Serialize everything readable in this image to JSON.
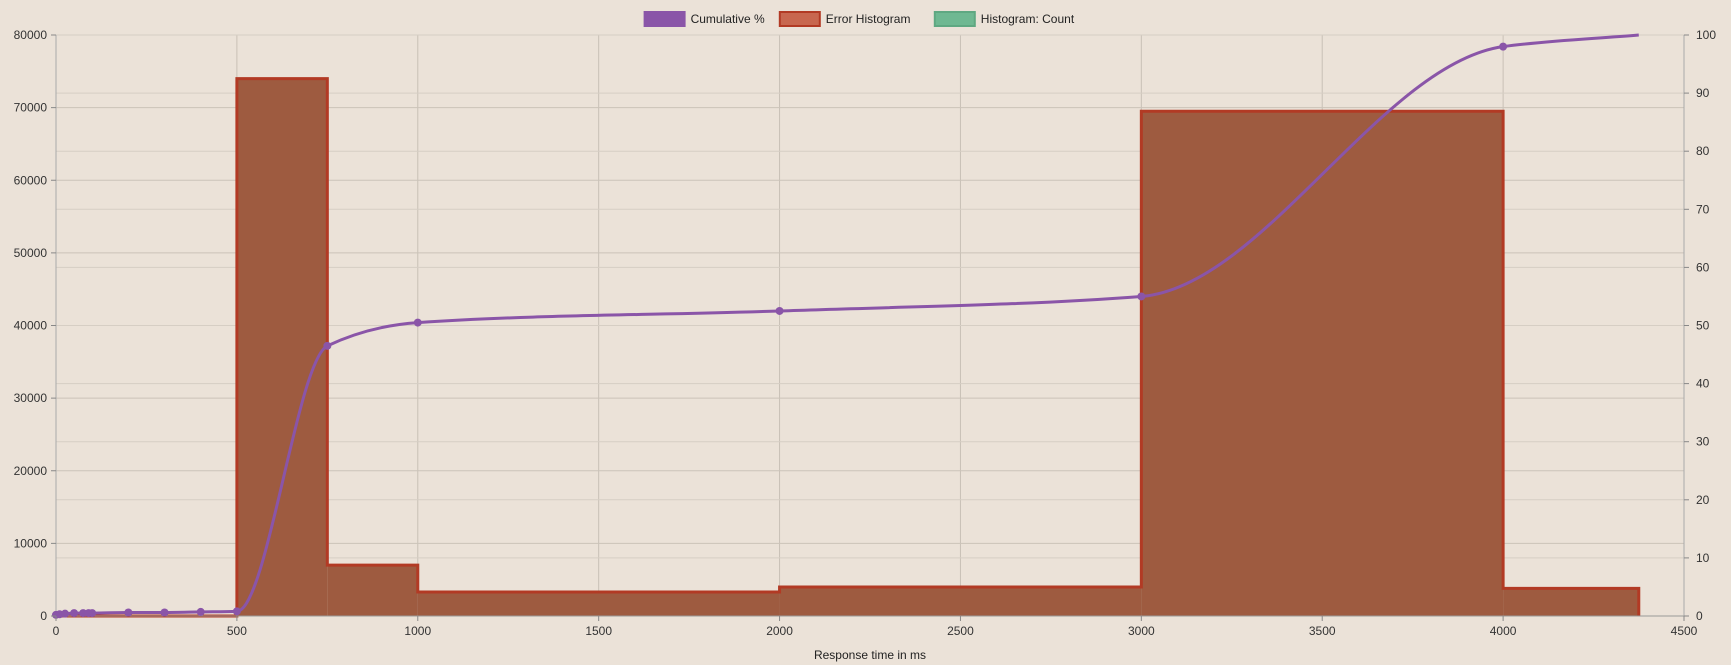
{
  "chart_data": {
    "type": "bar",
    "xlabel": "Response time in ms",
    "ylabel": "",
    "y2label": "",
    "xlim": [
      0,
      4500
    ],
    "ylim": [
      0,
      80000
    ],
    "y2lim": [
      0,
      100
    ],
    "x_ticks": [
      "0",
      "500",
      "1000",
      "1500",
      "2000",
      "2500",
      "3000",
      "3500",
      "4000",
      "4500"
    ],
    "y_ticks": [
      "0",
      "10000",
      "20000",
      "30000",
      "40000",
      "50000",
      "60000",
      "70000",
      "80000"
    ],
    "y2_ticks": [
      "0",
      "10",
      "20",
      "30",
      "40",
      "50",
      "60",
      "70",
      "80",
      "90",
      "100"
    ],
    "grid": true,
    "legend_position": "top-center",
    "legend": [
      {
        "label": "Cumulative %",
        "color": "#8a55a8"
      },
      {
        "label": "Error Histogram",
        "color": "#c8674f"
      },
      {
        "label": "Histogram: Count",
        "color": "#6fb892"
      }
    ],
    "series": [
      {
        "name": "Error Histogram",
        "type": "step-area",
        "color": "#9e5b40",
        "stroke": "#b23a24",
        "bins": [
          {
            "x0": 0,
            "x1": 500,
            "value": 0
          },
          {
            "x0": 500,
            "x1": 750,
            "value": 74000
          },
          {
            "x0": 750,
            "x1": 1000,
            "value": 7000
          },
          {
            "x0": 1000,
            "x1": 2000,
            "value": 3300
          },
          {
            "x0": 2000,
            "x1": 3000,
            "value": 4000
          },
          {
            "x0": 3000,
            "x1": 4000,
            "value": 69500
          },
          {
            "x0": 4000,
            "x1": 4375,
            "value": 3800
          }
        ]
      },
      {
        "name": "Cumulative %",
        "type": "line",
        "axis": "right",
        "color": "#8a55a8",
        "x": [
          0,
          10,
          25,
          50,
          75,
          90,
          100,
          200,
          300,
          400,
          500,
          750,
          1000,
          2000,
          3000,
          4000,
          4375
        ],
        "y": [
          0.2,
          0.3,
          0.4,
          0.5,
          0.5,
          0.5,
          0.5,
          0.6,
          0.6,
          0.7,
          0.8,
          46.5,
          50.5,
          52.5,
          55,
          98,
          100
        ],
        "markers": [
          0,
          10,
          25,
          50,
          75,
          90,
          100,
          200,
          300,
          400,
          500,
          750,
          1000,
          2000,
          3000,
          4000
        ]
      },
      {
        "name": "Histogram: Count",
        "type": "step-area",
        "color": "#6fb892",
        "bins": []
      }
    ]
  }
}
